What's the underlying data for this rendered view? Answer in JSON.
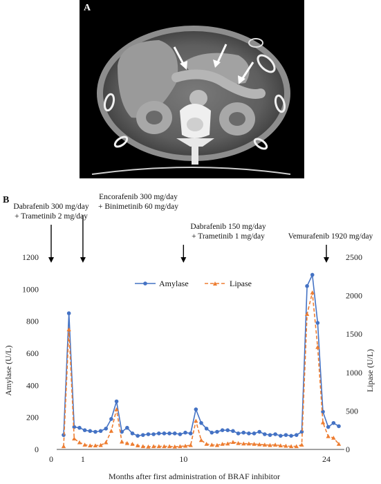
{
  "panel_a": {
    "label": "A"
  },
  "panel_b": {
    "label": "B"
  },
  "chart_data": {
    "type": "line",
    "xlabel": "Months after first administration of BRAF inhibitor",
    "ylabel_left": "Amylase (U/L)",
    "ylabel_right": "Lipase (U/L)",
    "ylim_left": [
      0,
      1200
    ],
    "ylim_right": [
      0,
      2500
    ],
    "yticks_left": [
      "0",
      "200",
      "400",
      "600",
      "800",
      "1000",
      "1200"
    ],
    "yticks_right": [
      "0",
      "500",
      "1000",
      "1500",
      "2000",
      "2500"
    ],
    "xticks": [
      "0",
      "1",
      "10",
      "24"
    ],
    "grid": false,
    "legend_position": "top-center",
    "annotations": [
      {
        "lines": [
          "Dabrafenib 300 mg/day",
          "+ Trametinib 2 mg/day"
        ],
        "at_point": 0
      },
      {
        "lines": [
          "Encorafenib 300 mg/day",
          "+ Binimetinib 60 mg/day"
        ],
        "at_point": 6
      },
      {
        "lines": [
          "Dabrafenib 150 mg/day",
          "+ Trametinib 1 mg/day"
        ],
        "at_point": 25
      },
      {
        "lines": [
          "Vemurafenib 1920 mg/day"
        ],
        "at_point": 52
      }
    ],
    "xtick_points": [
      0,
      6,
      25,
      52
    ],
    "series": [
      {
        "name": "Amylase",
        "axis": "left",
        "color": "#4472C4",
        "marker": "circle",
        "values": [
          90,
          850,
          140,
          135,
          120,
          115,
          110,
          115,
          130,
          190,
          300,
          110,
          135,
          100,
          85,
          90,
          95,
          95,
          100,
          100,
          100,
          100,
          95,
          105,
          100,
          250,
          165,
          130,
          105,
          110,
          120,
          120,
          115,
          100,
          105,
          100,
          100,
          110,
          95,
          90,
          95,
          85,
          90,
          85,
          90,
          110,
          1020,
          1090,
          790,
          235,
          140,
          165,
          145
        ]
      },
      {
        "name": "Lipase",
        "axis": "right",
        "color": "#ED7D31",
        "marker": "triangle",
        "values": [
          40,
          1560,
          140,
          90,
          60,
          50,
          50,
          55,
          90,
          240,
          520,
          100,
          80,
          70,
          50,
          40,
          35,
          40,
          40,
          40,
          40,
          35,
          40,
          45,
          55,
          370,
          120,
          70,
          60,
          55,
          70,
          75,
          95,
          80,
          75,
          75,
          70,
          65,
          60,
          55,
          60,
          50,
          45,
          40,
          40,
          60,
          1760,
          2040,
          1330,
          350,
          170,
          150,
          70
        ]
      }
    ]
  }
}
